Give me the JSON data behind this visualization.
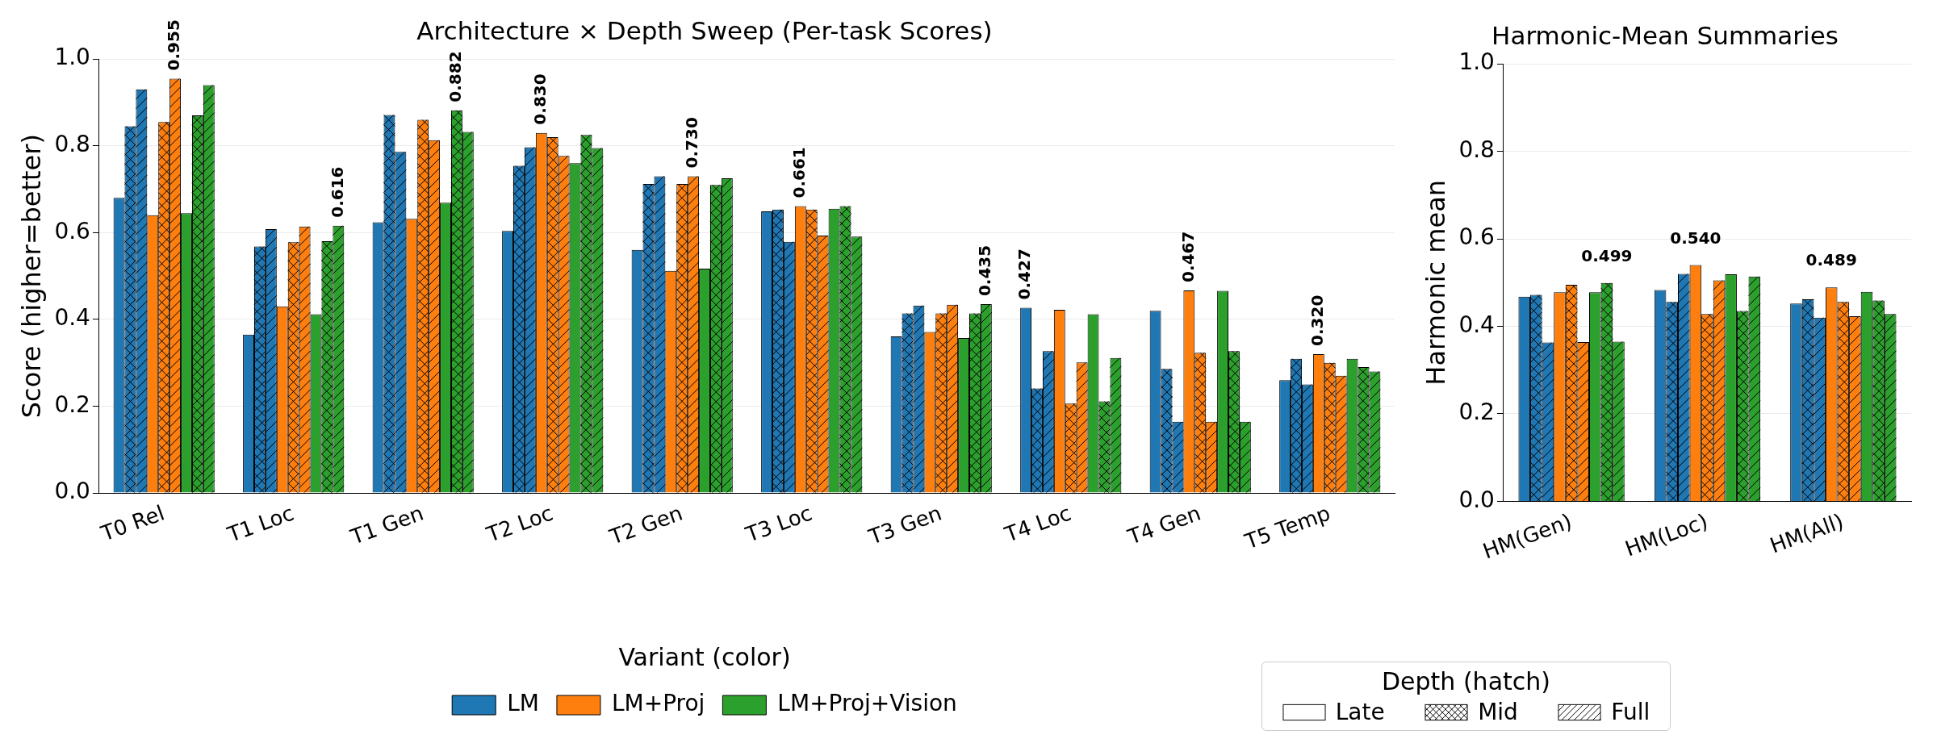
{
  "chart_data": [
    {
      "type": "bar",
      "title": "Architecture × Depth Sweep (Per-task Scores)",
      "ylabel": "Score (higher=better)",
      "legend_title": "Variant (color)",
      "legend": "bottom",
      "grid": "y",
      "categories": [
        "T0 Rel",
        "T1 Loc",
        "T1 Gen",
        "T2 Loc",
        "T2 Gen",
        "T3 Loc",
        "T3 Gen",
        "T4 Loc",
        "T4 Gen",
        "T5 Temp"
      ],
      "ylim": [
        0,
        1
      ],
      "yticks": [
        {
          "value": 0,
          "label": "0.0"
        },
        {
          "value": 0.2,
          "label": "0.2"
        },
        {
          "value": 0.4,
          "label": "0.4"
        },
        {
          "value": 0.6,
          "label": "0.6"
        },
        {
          "value": 0.8,
          "label": "0.8"
        },
        {
          "value": 1,
          "label": "1.0"
        }
      ],
      "series": [
        {
          "name": "LM",
          "color": "#1f77b4",
          "values": [
            0.68,
            0.365,
            0.624,
            0.604,
            0.56,
            0.649,
            0.361,
            0.427,
            0.42,
            0.26
          ],
          "value_labels": [
            null,
            null,
            null,
            null,
            null,
            null,
            null,
            "0.427",
            null,
            null
          ]
        },
        {
          "color": "#1f77b4",
          "values": [
            0.845,
            0.568,
            0.871,
            0.754,
            0.712,
            0.653,
            0.414,
            0.241,
            0.286,
            0.309
          ]
        },
        {
          "color": "#1f77b4",
          "values": [
            0.93,
            0.608,
            0.786,
            0.797,
            0.73,
            0.579,
            0.432,
            0.327,
            0.164,
            0.25
          ]
        },
        {
          "name": "LM+Proj",
          "color": "#ff7f0e",
          "values": [
            0.64,
            0.43,
            0.632,
            0.83,
            0.512,
            0.661,
            0.371,
            0.422,
            0.467,
            0.32
          ],
          "value_labels": [
            null,
            null,
            null,
            "0.830",
            null,
            "0.661",
            null,
            null,
            "0.467",
            "0.320"
          ]
        },
        {
          "color": "#ff7f0e",
          "values": [
            0.855,
            0.578,
            0.86,
            0.82,
            0.712,
            0.653,
            0.414,
            0.206,
            0.323,
            0.3
          ]
        },
        {
          "color": "#ff7f0e",
          "values": [
            0.955,
            0.614,
            0.813,
            0.777,
            0.73,
            0.593,
            0.434,
            0.301,
            0.164,
            0.27
          ],
          "value_labels": [
            "0.955",
            null,
            null,
            null,
            "0.730",
            null,
            null,
            null,
            null,
            null
          ]
        },
        {
          "name": "LM+Proj+Vision",
          "color": "#2ca02c",
          "values": [
            0.645,
            0.412,
            0.669,
            0.76,
            0.517,
            0.655,
            0.357,
            0.412,
            0.466,
            0.309
          ]
        },
        {
          "color": "#2ca02c",
          "values": [
            0.87,
            0.58,
            0.882,
            0.825,
            0.71,
            0.661,
            0.414,
            0.211,
            0.327,
            0.29
          ],
          "value_labels": [
            null,
            null,
            "0.882",
            null,
            null,
            null,
            null,
            null,
            null,
            null
          ]
        },
        {
          "color": "#2ca02c",
          "values": [
            0.94,
            0.616,
            0.832,
            0.795,
            0.725,
            0.591,
            0.435,
            0.311,
            0.164,
            0.28
          ],
          "value_labels": [
            null,
            "0.616",
            null,
            null,
            null,
            null,
            "0.435",
            null,
            null,
            null
          ]
        }
      ]
    },
    {
      "type": "bar",
      "title": "Harmonic-Mean Summaries",
      "ylabel": "Harmonic mean",
      "grid": "y",
      "annotations": [
        "Depth (hatch)",
        "Late",
        "Mid",
        "Full"
      ],
      "categories": [
        "HM(Gen)",
        "HM(Loc)",
        "HM(All)"
      ],
      "ylim": [
        0,
        1
      ],
      "yticks": [
        {
          "value": 0,
          "label": "0.0"
        },
        {
          "value": 0.2,
          "label": "0.2"
        },
        {
          "value": 0.4,
          "label": "0.4"
        },
        {
          "value": 0.6,
          "label": "0.6"
        },
        {
          "value": 0.8,
          "label": "0.8"
        },
        {
          "value": 1,
          "label": "1.0"
        }
      ],
      "series": [
        {
          "color": "#1f77b4",
          "values": [
            0.468,
            0.483,
            0.452
          ]
        },
        {
          "color": "#1f77b4",
          "values": [
            0.472,
            0.456,
            0.462
          ]
        },
        {
          "color": "#1f77b4",
          "values": [
            0.363,
            0.52,
            0.42
          ]
        },
        {
          "color": "#ff7f0e",
          "values": [
            0.478,
            0.54,
            0.489
          ],
          "value_labels": [
            null,
            "0.540",
            "0.489"
          ]
        },
        {
          "color": "#ff7f0e",
          "values": [
            0.495,
            0.428,
            0.456
          ]
        },
        {
          "color": "#ff7f0e",
          "values": [
            0.364,
            0.505,
            0.423
          ]
        },
        {
          "color": "#2ca02c",
          "values": [
            0.478,
            0.519,
            0.479
          ]
        },
        {
          "color": "#2ca02c",
          "values": [
            0.499,
            0.435,
            0.459
          ],
          "value_labels": [
            "0.499",
            null,
            null
          ]
        },
        {
          "color": "#2ca02c",
          "values": [
            0.365,
            0.514,
            0.428
          ]
        }
      ]
    }
  ]
}
